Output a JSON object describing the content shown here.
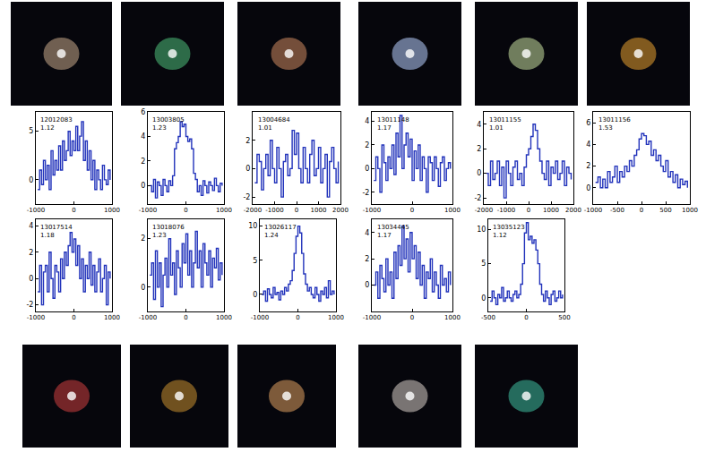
{
  "chart_data": [
    {
      "type": "line",
      "annotations": [
        "12012083",
        "1.12"
      ],
      "color": "#2233bb",
      "line_style": "steps",
      "x": [
        -950,
        -900,
        -850,
        -800,
        -750,
        -700,
        -650,
        -600,
        -550,
        -500,
        -450,
        -400,
        -350,
        -300,
        -250,
        -200,
        -150,
        -100,
        -50,
        0,
        50,
        100,
        150,
        200,
        250,
        300,
        350,
        400,
        450,
        500,
        550,
        600,
        650,
        700,
        750,
        800,
        850,
        900,
        950
      ],
      "values": [
        -1,
        1,
        -0.5,
        2,
        0,
        1.5,
        -1,
        3,
        0.5,
        2,
        1,
        3.5,
        1,
        4,
        2,
        3,
        5,
        2.5,
        4,
        3,
        5.5,
        3,
        4.5,
        6,
        2,
        4,
        1,
        3,
        0,
        2,
        -1,
        1,
        0,
        -1,
        1.5,
        0,
        -0.5,
        1,
        0
      ],
      "xlim": [
        -1000,
        1000
      ],
      "xticks": [
        -1000,
        0,
        1000
      ],
      "ylim": [
        -2.5,
        7
      ],
      "yticks": [
        0,
        5
      ]
    },
    {
      "type": "line",
      "annotations": [
        "13003805",
        "1.23"
      ],
      "color": "#2233bb",
      "line_style": "steps",
      "x": [
        -950,
        -900,
        -850,
        -800,
        -750,
        -700,
        -650,
        -600,
        -550,
        -500,
        -450,
        -400,
        -350,
        -300,
        -250,
        -200,
        -150,
        -100,
        -50,
        0,
        50,
        100,
        150,
        200,
        250,
        300,
        350,
        400,
        450,
        500,
        550,
        600,
        650,
        700,
        750,
        800,
        850,
        900,
        950
      ],
      "values": [
        0,
        -0.5,
        0.5,
        -1,
        0.3,
        0,
        -0.8,
        0.5,
        0,
        -0.5,
        0.4,
        0,
        0.8,
        3,
        3.5,
        4,
        5.2,
        4.8,
        5,
        4,
        3.6,
        3.8,
        3,
        1,
        0.5,
        -0.5,
        0,
        -0.8,
        0.4,
        0,
        -0.6,
        0.3,
        0,
        -0.4,
        0.6,
        0,
        -0.5,
        0.2,
        0
      ],
      "xlim": [
        -1000,
        1000
      ],
      "xticks": [
        -1000,
        0,
        1000
      ],
      "ylim": [
        -1.5,
        6
      ],
      "yticks": [
        0,
        2,
        4,
        6
      ]
    },
    {
      "type": "line",
      "annotations": [
        "13004684",
        "1.01"
      ],
      "color": "#2233bb",
      "line_style": "steps",
      "x": [
        -1900,
        -1800,
        -1700,
        -1600,
        -1500,
        -1400,
        -1300,
        -1200,
        -1100,
        -1000,
        -900,
        -800,
        -700,
        -600,
        -500,
        -400,
        -300,
        -200,
        -100,
        0,
        100,
        200,
        300,
        400,
        500,
        600,
        700,
        800,
        900,
        1000,
        1100,
        1200,
        1300,
        1400,
        1500,
        1600,
        1700,
        1800,
        1900
      ],
      "values": [
        -1,
        1,
        0.5,
        -1.5,
        0,
        1,
        -0.5,
        2,
        0,
        -1,
        1.5,
        0,
        -2,
        0.5,
        1,
        -0.5,
        0,
        2.7,
        1,
        2.5,
        0,
        -1,
        1.5,
        0,
        -1,
        1,
        2,
        -0.5,
        0,
        1.5,
        -1,
        0,
        1,
        -2,
        0.5,
        1.5,
        0,
        -1,
        0.5
      ],
      "xlim": [
        -2000,
        2000
      ],
      "xticks": [
        -2000,
        -1000,
        0,
        1000,
        2000
      ],
      "ylim": [
        -2.5,
        4
      ],
      "yticks": [
        -2,
        0,
        2
      ]
    },
    {
      "type": "line",
      "annotations": [
        "13011148",
        "1.17"
      ],
      "color": "#2233bb",
      "line_style": "steps",
      "x": [
        -950,
        -900,
        -850,
        -800,
        -750,
        -700,
        -650,
        -600,
        -550,
        -500,
        -450,
        -400,
        -350,
        -300,
        -250,
        -200,
        -150,
        -100,
        -50,
        0,
        50,
        100,
        150,
        200,
        250,
        300,
        350,
        400,
        450,
        500,
        550,
        600,
        650,
        700,
        750,
        800,
        850,
        900,
        950
      ],
      "values": [
        -1,
        1,
        0,
        -2,
        2,
        0.5,
        -1,
        1,
        0,
        2,
        -0.5,
        3,
        1,
        4.5,
        0,
        2,
        3,
        1,
        2.5,
        -1,
        1.5,
        0,
        2,
        -1,
        1,
        0,
        -2,
        1,
        0.5,
        -1,
        1,
        0,
        -1.5,
        0.5,
        1,
        -1,
        0,
        0.5,
        0
      ],
      "xlim": [
        -1000,
        1000
      ],
      "xticks": [
        -1000,
        0,
        1000
      ],
      "ylim": [
        -3,
        4.8
      ],
      "yticks": [
        -2,
        0,
        2,
        4
      ]
    },
    {
      "type": "line",
      "annotations": [
        "13011155",
        "1.01"
      ],
      "color": "#2233bb",
      "line_style": "steps",
      "x": [
        -1900,
        -1800,
        -1700,
        -1600,
        -1500,
        -1400,
        -1300,
        -1200,
        -1100,
        -1000,
        -900,
        -800,
        -700,
        -600,
        -500,
        -400,
        -300,
        -200,
        -100,
        0,
        100,
        200,
        300,
        400,
        500,
        600,
        700,
        800,
        900,
        1000,
        1100,
        1200,
        1300,
        1400,
        1500,
        1600,
        1700,
        1800,
        1900
      ],
      "values": [
        0,
        -1,
        1,
        -0.5,
        0,
        1,
        -1,
        0.5,
        -2,
        1,
        0,
        -1,
        0.5,
        1,
        -0.5,
        0,
        -1,
        0.5,
        1.5,
        2,
        3,
        4,
        3.5,
        2,
        1,
        0,
        -0.5,
        1,
        -1,
        0.5,
        0,
        1,
        -0.5,
        0,
        1,
        -1,
        0.5,
        0,
        -0.5
      ],
      "xlim": [
        -2000,
        2000
      ],
      "xticks": [
        -2000,
        -1000,
        0,
        1000,
        2000
      ],
      "ylim": [
        -2.5,
        5
      ],
      "yticks": [
        -2,
        0,
        2,
        4
      ]
    },
    {
      "type": "line",
      "annotations": [
        "13011156",
        "1.53"
      ],
      "color": "#2233bb",
      "line_style": "steps",
      "x": [
        -950,
        -900,
        -850,
        -800,
        -750,
        -700,
        -650,
        -600,
        -550,
        -500,
        -450,
        -400,
        -350,
        -300,
        -250,
        -200,
        -150,
        -100,
        -50,
        0,
        50,
        100,
        150,
        200,
        250,
        300,
        350,
        400,
        450,
        500,
        550,
        600,
        650,
        700,
        750,
        800,
        850,
        900,
        950
      ],
      "values": [
        0.5,
        1,
        0,
        0.8,
        0,
        1.5,
        0.5,
        1,
        2,
        0.5,
        1.5,
        1,
        2,
        1.5,
        2.5,
        2,
        3,
        3.5,
        4.5,
        5,
        4.8,
        4,
        4.3,
        3,
        3.5,
        2.5,
        3,
        2,
        1.5,
        2.5,
        1,
        1.5,
        0.5,
        1.2,
        0,
        0.8,
        0.3,
        0.6,
        0
      ],
      "xlim": [
        -1000,
        1000
      ],
      "xticks": [
        -1000,
        -500,
        0,
        500,
        1000
      ],
      "ylim": [
        -1.5,
        7
      ],
      "yticks": [
        0,
        2,
        4,
        6
      ]
    },
    {
      "type": "line",
      "annotations": [
        "13017514",
        "1.18"
      ],
      "color": "#2233bb",
      "line_style": "steps",
      "x": [
        -950,
        -900,
        -850,
        -800,
        -750,
        -700,
        -650,
        -600,
        -550,
        -500,
        -450,
        -400,
        -350,
        -300,
        -250,
        -200,
        -150,
        -100,
        -50,
        0,
        50,
        100,
        150,
        200,
        250,
        300,
        350,
        400,
        450,
        500,
        550,
        600,
        650,
        700,
        750,
        800,
        850,
        900,
        950
      ],
      "values": [
        -1,
        1,
        -2,
        0.5,
        1,
        -1,
        2,
        0,
        -1.5,
        1,
        0.5,
        -1,
        1.5,
        0,
        2,
        1,
        2.5,
        3.5,
        2,
        3,
        1,
        2.5,
        0,
        1.5,
        -1,
        1,
        0,
        2,
        -0.5,
        1,
        -1,
        0.5,
        1.5,
        -1,
        0,
        1,
        -2,
        0.5,
        0
      ],
      "xlim": [
        -1000,
        1000
      ],
      "xticks": [
        -1000,
        0,
        1000
      ],
      "ylim": [
        -2.5,
        4.5
      ],
      "yticks": [
        -2,
        0,
        2,
        4
      ]
    },
    {
      "type": "line",
      "annotations": [
        "13018076",
        "1.23"
      ],
      "color": "#2233bb",
      "line_style": "steps",
      "x": [
        -950,
        -900,
        -850,
        -800,
        -750,
        -700,
        -650,
        -600,
        -550,
        -500,
        -450,
        -400,
        -350,
        -300,
        -250,
        -200,
        -150,
        -100,
        -50,
        0,
        50,
        100,
        150,
        200,
        250,
        300,
        350,
        400,
        450,
        500,
        550,
        600,
        650,
        700,
        750,
        800,
        850,
        900,
        950
      ],
      "values": [
        0.5,
        1,
        -0.5,
        1.5,
        0,
        1,
        -0.8,
        0.5,
        1.2,
        0,
        2,
        0.5,
        1,
        -0.3,
        1.5,
        0.8,
        0,
        1.8,
        1,
        2.2,
        0.5,
        1.5,
        0,
        1,
        2.3,
        0.8,
        1.5,
        0,
        1.8,
        1,
        0.5,
        1.5,
        0,
        1.2,
        0.8,
        1.6,
        0.3,
        1,
        0.5
      ],
      "xlim": [
        -1000,
        1000
      ],
      "xticks": [
        -1000,
        0,
        1000
      ],
      "ylim": [
        -1,
        2.8
      ],
      "yticks": [
        0,
        2
      ]
    },
    {
      "type": "line",
      "annotations": [
        "13026117",
        "1.24"
      ],
      "color": "#2233bb",
      "line_style": "steps",
      "x": [
        -950,
        -900,
        -850,
        -800,
        -750,
        -700,
        -650,
        -600,
        -550,
        -500,
        -450,
        -400,
        -350,
        -300,
        -250,
        -200,
        -150,
        -100,
        -50,
        0,
        50,
        100,
        150,
        200,
        250,
        300,
        350,
        400,
        450,
        500,
        550,
        600,
        650,
        700,
        750,
        800,
        850,
        900,
        950
      ],
      "values": [
        0,
        0.5,
        -1,
        0.8,
        0,
        -0.5,
        1,
        0,
        0.3,
        -0.8,
        0.5,
        0,
        1,
        0.5,
        1.5,
        2,
        3.5,
        6,
        8.5,
        10,
        9,
        6,
        3,
        1.5,
        0.5,
        1,
        0,
        -0.5,
        1,
        0,
        -1,
        0.5,
        0,
        1,
        -0.5,
        2,
        0,
        0.5,
        0
      ],
      "xlim": [
        -1000,
        1000
      ],
      "xticks": [
        -1000,
        0,
        1000
      ],
      "ylim": [
        -2.5,
        11
      ],
      "yticks": [
        0,
        5,
        10
      ]
    },
    {
      "type": "line",
      "annotations": [
        "13034445",
        "1.17"
      ],
      "color": "#2233bb",
      "line_style": "steps",
      "x": [
        -950,
        -900,
        -850,
        -800,
        -750,
        -700,
        -650,
        -600,
        -550,
        -500,
        -450,
        -400,
        -350,
        -300,
        -250,
        -200,
        -150,
        -100,
        -50,
        0,
        50,
        100,
        150,
        200,
        250,
        300,
        350,
        400,
        450,
        500,
        550,
        600,
        650,
        700,
        750,
        800,
        850,
        900,
        950
      ],
      "values": [
        0,
        1,
        -1,
        1.5,
        0.5,
        -0.5,
        2,
        0,
        1,
        -1,
        2.5,
        0.5,
        3,
        1.5,
        4.5,
        2,
        3.5,
        1,
        4,
        2,
        3,
        0.5,
        2.5,
        0,
        1.5,
        -1,
        1,
        0.5,
        2,
        -0.5,
        1,
        0,
        -1,
        1.5,
        0,
        0.5,
        -0.5,
        1,
        0
      ],
      "xlim": [
        -1000,
        1000
      ],
      "xticks": [
        -1000,
        0,
        1000
      ],
      "ylim": [
        -2,
        5
      ],
      "yticks": [
        0,
        2,
        4
      ]
    },
    {
      "type": "line",
      "annotations": [
        "13035123",
        "1.12"
      ],
      "color": "#2233bb",
      "line_style": "steps",
      "x": [
        -475,
        -450,
        -425,
        -400,
        -375,
        -350,
        -325,
        -300,
        -275,
        -250,
        -225,
        -200,
        -175,
        -150,
        -125,
        -100,
        -75,
        -50,
        -25,
        0,
        25,
        50,
        75,
        100,
        125,
        150,
        175,
        200,
        225,
        250,
        275,
        300,
        325,
        350,
        375,
        400,
        425,
        450,
        475
      ],
      "values": [
        -0.5,
        1,
        0,
        -1,
        0.5,
        0,
        1.5,
        -0.5,
        0,
        1,
        0,
        -0.5,
        0.5,
        1,
        0,
        0.5,
        2,
        5,
        9.5,
        11,
        8.5,
        9,
        8,
        8.5,
        7,
        5,
        2,
        0.5,
        -0.5,
        1,
        0,
        -1,
        0.5,
        1,
        -0.5,
        0,
        1,
        0,
        0.5
      ],
      "xlim": [
        -500,
        500
      ],
      "xticks": [
        -500,
        0,
        500
      ],
      "ylim": [
        -2,
        11.5
      ],
      "yticks": [
        0,
        5,
        10
      ]
    }
  ]
}
